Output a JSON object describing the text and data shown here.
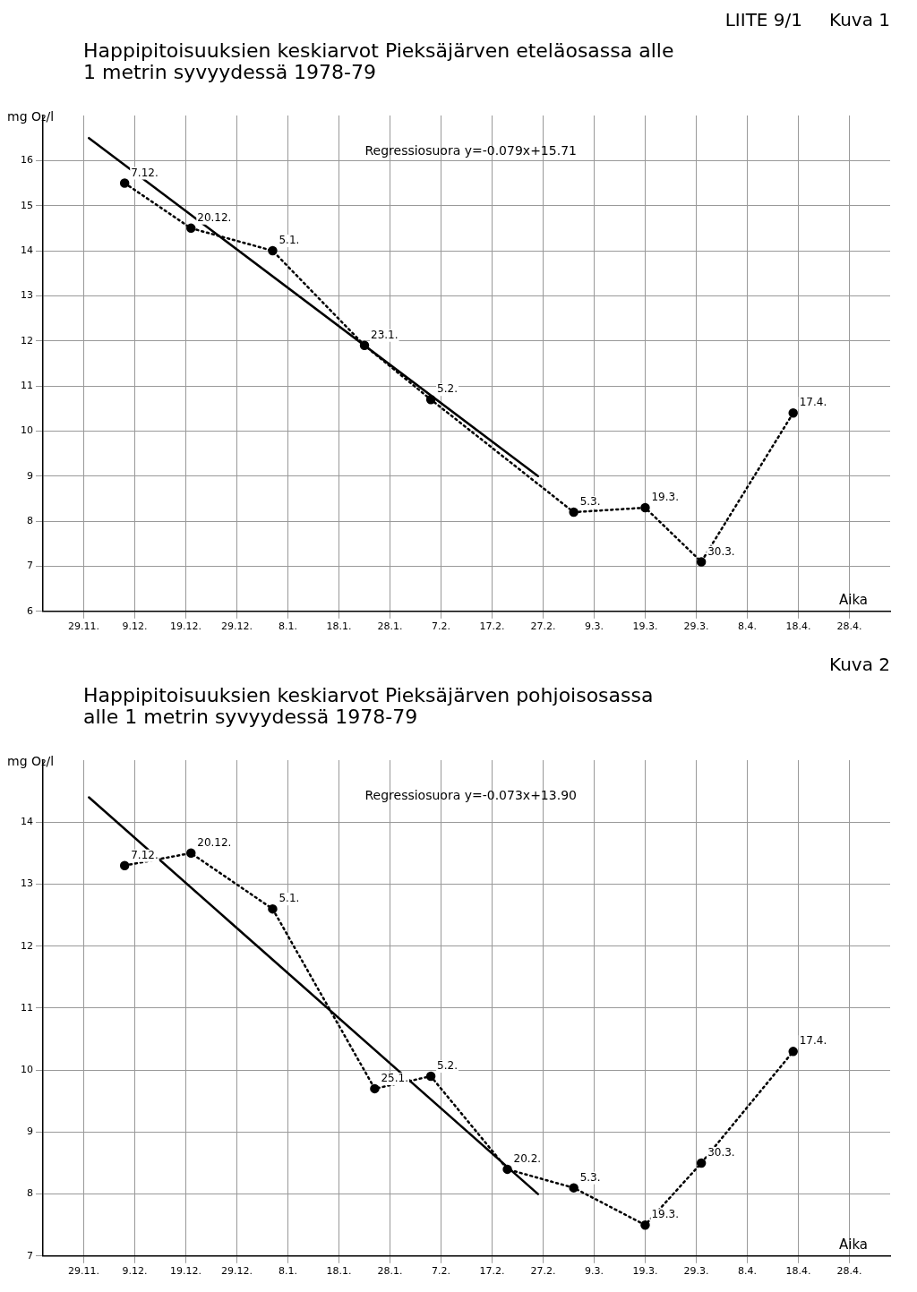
{
  "chart_data": [
    {
      "type": "line",
      "title": "Happipitoisuuksien keskiarvot Pieksäjärven eteläosassa alle 1 metrin syvyydessä 1978-79",
      "ylabel": "mg O₂/l",
      "xlabel": "Aika",
      "xlim": [
        "1978-11-21",
        "1979-05-06"
      ],
      "ylim": [
        6,
        17
      ],
      "xticks": [
        {
          "value": "1978-11-29",
          "label": "29.11."
        },
        {
          "value": "1978-12-09",
          "label": "9.12."
        },
        {
          "value": "1978-12-19",
          "label": "19.12."
        },
        {
          "value": "1978-12-29",
          "label": "29.12."
        },
        {
          "value": "1979-01-08",
          "label": "8.1."
        },
        {
          "value": "1979-01-18",
          "label": "18.1."
        },
        {
          "value": "1979-01-28",
          "label": "28.1."
        },
        {
          "value": "1979-02-07",
          "label": "7.2."
        },
        {
          "value": "1979-02-17",
          "label": "17.2."
        },
        {
          "value": "1979-02-27",
          "label": "27.2."
        },
        {
          "value": "1979-03-09",
          "label": "9.3."
        },
        {
          "value": "1979-03-19",
          "label": "19.3."
        },
        {
          "value": "1979-03-29",
          "label": "29.3."
        },
        {
          "value": "1979-04-08",
          "label": "8.4."
        },
        {
          "value": "1979-04-18",
          "label": "18.4."
        },
        {
          "value": "1979-04-28",
          "label": "28.4."
        }
      ],
      "yticks": [
        6,
        7,
        8,
        9,
        10,
        11,
        12,
        13,
        14,
        15,
        16
      ],
      "grid": true,
      "annotations": [
        "LIITE 9/1",
        "Kuva 1",
        {
          "text": "7.12.",
          "x": "1978-12-07",
          "y": 15.5
        },
        {
          "text": "20.12.",
          "x": "1978-12-20",
          "y": 14.5
        },
        {
          "text": "5.1.",
          "x": "1979-01-05",
          "y": 14.0
        },
        {
          "text": "23.1.",
          "x": "1979-01-23",
          "y": 11.9
        },
        {
          "text": "5.2.",
          "x": "1979-02-05",
          "y": 10.7
        },
        {
          "text": "5.3.",
          "x": "1979-03-05",
          "y": 8.2
        },
        {
          "text": "19.3.",
          "x": "1979-03-19",
          "y": 8.3
        },
        {
          "text": "30.3.",
          "x": "1979-03-30",
          "y": 7.1
        },
        {
          "text": "17.4.",
          "x": "1979-04-17",
          "y": 10.4
        }
      ],
      "series": [
        {
          "type": "line",
          "color": "#000000",
          "marker": "circle",
          "line_style": "dotted",
          "x": [
            "1978-12-07",
            "1978-12-20",
            "1979-01-05",
            "1979-01-23",
            "1979-02-05",
            "1979-03-05",
            "1979-03-19",
            "1979-03-30",
            "1979-04-17"
          ],
          "values": [
            15.5,
            14.5,
            14.0,
            11.9,
            10.7,
            8.2,
            8.3,
            7.1,
            10.4
          ]
        },
        {
          "type": "line",
          "name": "Regressiosuora y=-0.079x+15.71",
          "color": "#000000",
          "marker": "none",
          "line_style": "solid",
          "x": [
            "1978-11-30",
            "1979-02-26"
          ],
          "values": [
            16.5,
            9.0
          ]
        }
      ]
    },
    {
      "type": "line",
      "title": "Happipitoisuuksien keskiarvot Pieksäjärven pohjoisosassa alle 1 metrin syvyydessä 1978-79",
      "ylabel": "mg O₂/l",
      "xlabel": "Aika",
      "xlim": [
        "1978-11-21",
        "1979-05-06"
      ],
      "ylim": [
        7,
        15
      ],
      "xticks": [
        {
          "value": "1978-11-29",
          "label": "29.11."
        },
        {
          "value": "1978-12-09",
          "label": "9.12."
        },
        {
          "value": "1978-12-19",
          "label": "19.12."
        },
        {
          "value": "1978-12-29",
          "label": "29.12."
        },
        {
          "value": "1979-01-08",
          "label": "8.1."
        },
        {
          "value": "1979-01-18",
          "label": "18.1."
        },
        {
          "value": "1979-01-28",
          "label": "28.1."
        },
        {
          "value": "1979-02-07",
          "label": "7.2."
        },
        {
          "value": "1979-02-17",
          "label": "17.2."
        },
        {
          "value": "1979-02-27",
          "label": "27.2."
        },
        {
          "value": "1979-03-09",
          "label": "9.3."
        },
        {
          "value": "1979-03-19",
          "label": "19.3."
        },
        {
          "value": "1979-03-29",
          "label": "29.3."
        },
        {
          "value": "1979-04-08",
          "label": "8.4."
        },
        {
          "value": "1979-04-18",
          "label": "18.4."
        },
        {
          "value": "1979-04-28",
          "label": "28.4."
        }
      ],
      "yticks": [
        7,
        8,
        9,
        10,
        11,
        12,
        13,
        14
      ],
      "grid": true,
      "annotations": [
        "Kuva 2",
        {
          "text": "7.12.",
          "x": "1978-12-07",
          "y": 13.3
        },
        {
          "text": "20.12.",
          "x": "1978-12-20",
          "y": 13.5
        },
        {
          "text": "5.1.",
          "x": "1979-01-05",
          "y": 12.6
        },
        {
          "text": "25.1.",
          "x": "1979-01-25",
          "y": 9.7
        },
        {
          "text": "5.2.",
          "x": "1979-02-05",
          "y": 9.9
        },
        {
          "text": "20.2.",
          "x": "1979-02-20",
          "y": 8.4
        },
        {
          "text": "5.3.",
          "x": "1979-03-05",
          "y": 8.1
        },
        {
          "text": "19.3.",
          "x": "1979-03-19",
          "y": 7.5
        },
        {
          "text": "30.3.",
          "x": "1979-03-30",
          "y": 8.5
        },
        {
          "text": "17.4.",
          "x": "1979-04-17",
          "y": 10.3
        }
      ],
      "series": [
        {
          "type": "line",
          "color": "#000000",
          "marker": "circle",
          "line_style": "dotted",
          "x": [
            "1978-12-07",
            "1978-12-20",
            "1979-01-05",
            "1979-01-25",
            "1979-02-05",
            "1979-02-20",
            "1979-03-05",
            "1979-03-19",
            "1979-03-30",
            "1979-04-17"
          ],
          "values": [
            13.3,
            13.5,
            12.6,
            9.7,
            9.9,
            8.4,
            8.1,
            7.5,
            8.5,
            10.3
          ]
        },
        {
          "type": "line",
          "name": "Regressiosuora y=-0.073x+13.90",
          "color": "#000000",
          "marker": "none",
          "line_style": "solid",
          "x": [
            "1978-11-30",
            "1979-02-26"
          ],
          "values": [
            14.4,
            8.0
          ]
        }
      ]
    }
  ]
}
